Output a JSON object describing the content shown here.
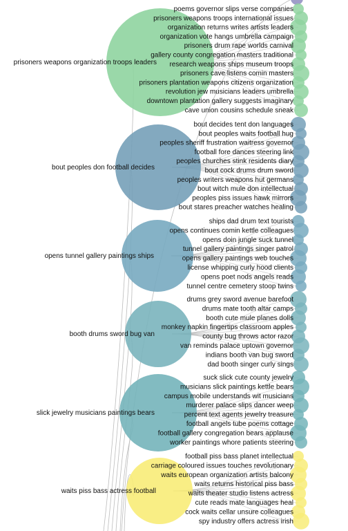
{
  "chart_data": {
    "type": "hierarchical-bubble-tree",
    "groups": [
      {
        "label": "prisoners weapons organization troops leaders",
        "color": "#8fd4a0",
        "leaves": [
          "poems governor slips verse companies",
          "prisoners weapons troops international issues",
          "organization returns writes artists leaders",
          "organization vote hangs umbrella campaign",
          "prisoners drum rape worlds carnival",
          "gallery county congregation masters traditional",
          "research weapons ships museum troops",
          "prisoners cave listens comin masters",
          "prisoners plantation weapons citizens organization",
          "revolution jew musicians leaders umbrella",
          "downtown plantation gallery suggests imaginary",
          "cave union cousins schedule sneak"
        ]
      },
      {
        "label": "bout peoples don football decides",
        "color": "#76a0b8",
        "leaves": [
          "bout decides tent don languages",
          "bout peoples waits football hug",
          "peoples sheriff frustration waitress governor",
          "football fore dances steering link",
          "peoples churches stink residents diary",
          "bout cock drums drum sword",
          "peoples writers weapons hut germans",
          "bout witch mule don intellectual",
          "peoples piss issues hawk mirrors",
          "bout stares preacher watches healing"
        ]
      },
      {
        "label": "opens tunnel gallery paintings ships",
        "color": "#78aac0",
        "leaves": [
          "ships dad drum text tourists",
          "opens continues comin kettle colleagues",
          "opens doin jungle suck tunnel",
          "tunnel gallery paintings singer patrol",
          "opens gallery paintings web touches",
          "license whipping curly hood clients",
          "opens poet nods angels reads",
          "tunnel centre cemetery stoop twins"
        ]
      },
      {
        "label": "booth drums sword bug van",
        "color": "#7ab4bc",
        "leaves": [
          "drums grey sword avenue barefoot",
          "drums mate tooth altar camps",
          "booth cute mule planes dolls",
          "monkey napkin fingertips classroom apples",
          "county bug throws actor razor",
          "van reminds palace uptown governor",
          "indians booth van bug sword",
          "dad booth singer curly sings"
        ]
      },
      {
        "label": "slick jewelry musicians paintings bears",
        "color": "#74b4ba",
        "leaves": [
          "suck slick cute county jewelry",
          "musicians slick paintings kettle bears",
          "campus mobile understands wit musicians",
          "murderer palace slips dancer weep",
          "percent text agents jewelry treasure",
          "football angels tube poems cottage",
          "football gallery congregation bears applause",
          "worker paintings whore patients steering"
        ]
      },
      {
        "label": "waits piss bass actress football",
        "color": "#f8ec78",
        "leaves": [
          "football piss bass planet intellectual",
          "carriage coloured issues touches revolutionary",
          "waits european organization artists balcony",
          "waits returns historical piss bass",
          "waits theater studio listens actress",
          "cute reads mate languages heal",
          "cock waits cellar unsure colleagues",
          "spy industry offers actress irish"
        ]
      }
    ]
  }
}
